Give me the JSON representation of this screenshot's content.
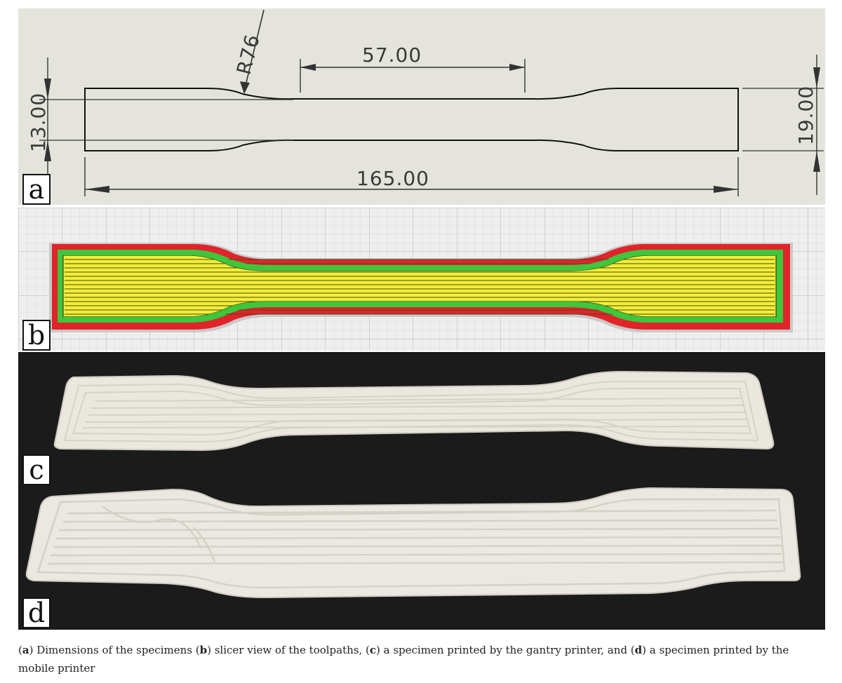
{
  "panels": {
    "a": {
      "label": "a",
      "dimensions": {
        "radius": "R76",
        "gauge_length": "57.00",
        "total_length": "165.00",
        "gauge_width": "13.00",
        "grip_width": "19.00"
      }
    },
    "b": {
      "label": "b"
    },
    "c": {
      "label": "c"
    },
    "d": {
      "label": "d"
    }
  },
  "caption": {
    "segments": [
      {
        "text": "(",
        "bold": false
      },
      {
        "text": "a",
        "bold": true
      },
      {
        "text": ") Dimensions of the specimens (",
        "bold": false
      },
      {
        "text": "b",
        "bold": true
      },
      {
        "text": ") slicer view of the toolpaths, (",
        "bold": false
      },
      {
        "text": "c",
        "bold": true
      },
      {
        "text": ") a specimen printed by the gantry printer, and (",
        "bold": false
      },
      {
        "text": "d",
        "bold": true
      },
      {
        "text": ") a specimen printed by the mobile printer",
        "bold": false
      }
    ]
  },
  "colors": {
    "drawing_bg": "#e4e4dc",
    "slicer_grid_bg": "#eeeeee",
    "toolpath_outer": "#e0242a",
    "toolpath_inner": "#3fc63c",
    "toolpath_infill": "#f3ee36",
    "photo_bg": "#1b1b1b",
    "specimen": "#eeebe4"
  }
}
